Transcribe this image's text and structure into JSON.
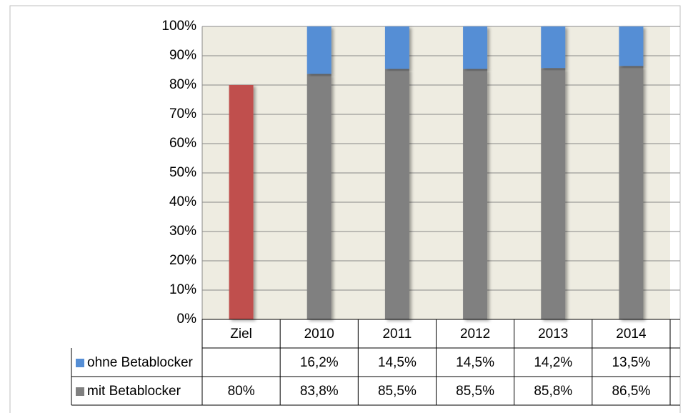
{
  "chart_data": {
    "type": "stacked_bar",
    "categories": [
      "Ziel",
      "2010",
      "2011",
      "2012",
      "2013",
      "2014"
    ],
    "series": [
      {
        "name": "mit Betablocker",
        "color": "#808080",
        "point_colors": [
          "#c0504d",
          "#808080",
          "#808080",
          "#808080",
          "#808080",
          "#808080"
        ],
        "values": [
          80,
          83.8,
          85.5,
          85.5,
          85.8,
          86.5
        ],
        "value_labels": [
          "80%",
          "83,8%",
          "85,5%",
          "85,5%",
          "85,8%",
          "86,5%"
        ]
      },
      {
        "name": "ohne Betablocker",
        "color": "#558ed5",
        "values": [
          null,
          16.2,
          14.5,
          14.5,
          14.2,
          13.5
        ],
        "value_labels": [
          null,
          "16,2%",
          "14,5%",
          "14,5%",
          "14,2%",
          "13,5%"
        ]
      }
    ],
    "table_order": [
      1,
      0
    ],
    "ylim": [
      0,
      100
    ],
    "yticks": [
      {
        "value": 0,
        "label": "0%"
      },
      {
        "value": 10,
        "label": "10%"
      },
      {
        "value": 20,
        "label": "20%"
      },
      {
        "value": 30,
        "label": "30%"
      },
      {
        "value": 40,
        "label": "40%"
      },
      {
        "value": 50,
        "label": "50%"
      },
      {
        "value": 60,
        "label": "60%"
      },
      {
        "value": 70,
        "label": "70%"
      },
      {
        "value": 80,
        "label": "80%"
      },
      {
        "value": 90,
        "label": "90%"
      },
      {
        "value": 100,
        "label": "100%"
      }
    ],
    "grid": true
  }
}
